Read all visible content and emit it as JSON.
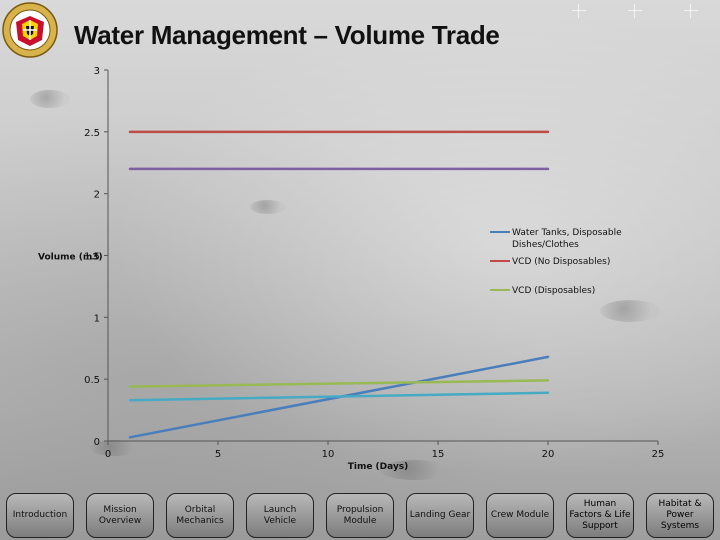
{
  "header": {
    "title": "Water Management – Volume Trade"
  },
  "chart_data": {
    "type": "line",
    "title": "",
    "xlabel": "Time (Days)",
    "ylabel": "Volume (m3)",
    "xlim": [
      0,
      25
    ],
    "ylim": [
      0,
      3
    ],
    "x_ticks": [
      "0",
      "5",
      "10",
      "15",
      "20",
      "25"
    ],
    "y_ticks": [
      "0",
      "0.5",
      "1",
      "1.5",
      "2",
      "2.5",
      "3"
    ],
    "legend_position": "right",
    "series": [
      {
        "name": "Water Tanks, Disposable Dishes/Clothes",
        "color": "#4a7ebb",
        "x": [
          1,
          20
        ],
        "y": [
          0.03,
          0.68
        ]
      },
      {
        "name": "VCD (No Disposables)",
        "color": "#be4b48",
        "x": [
          1,
          20
        ],
        "y": [
          2.5,
          2.5
        ]
      },
      {
        "name": "VCD (Disposables)",
        "color": "#98b954",
        "x": [
          1,
          20
        ],
        "y": [
          0.44,
          0.49
        ]
      },
      {
        "name": "",
        "color": "#7d60a0",
        "x": [
          1,
          20
        ],
        "y": [
          2.2,
          2.2
        ]
      },
      {
        "name": "",
        "color": "#46aac5",
        "x": [
          1,
          20
        ],
        "y": [
          0.33,
          0.39
        ]
      }
    ]
  },
  "nav": {
    "items": [
      "Introduction",
      "Mission Overview",
      "Orbital Mechanics",
      "Launch Vehicle",
      "Propulsion Module",
      "Landing Gear",
      "Crew Module",
      "Human Factors & Life Support",
      "Habitat & Power Systems"
    ]
  }
}
